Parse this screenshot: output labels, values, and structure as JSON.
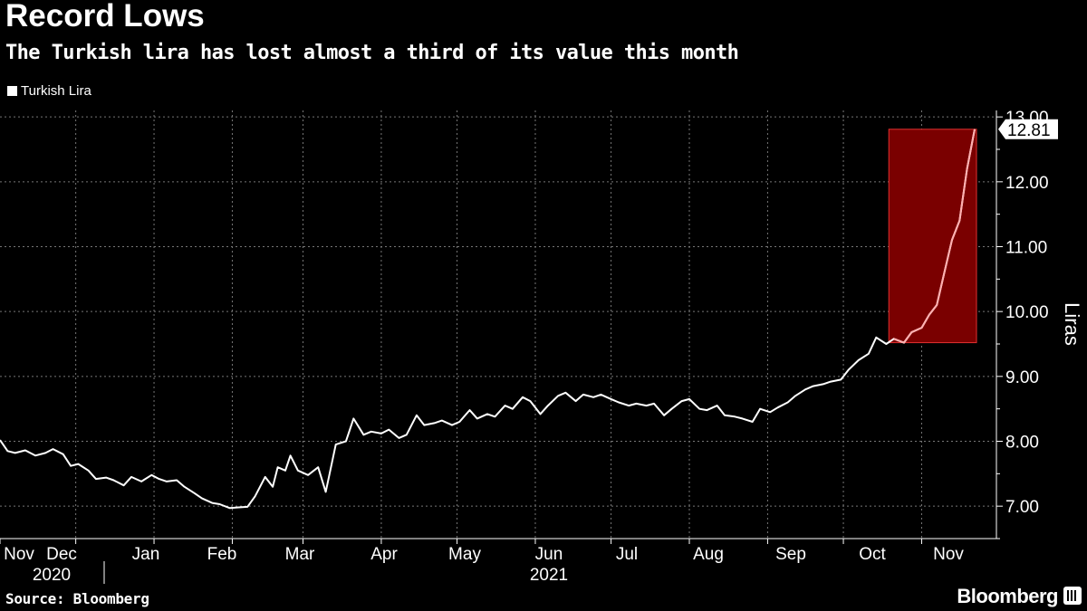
{
  "chart_data": {
    "type": "line",
    "title": "Record Lows",
    "subtitle": "The Turkish lira has lost almost a third of its value this month",
    "legend": [
      "Turkish Lira"
    ],
    "ylabel": "Liras",
    "ylim": [
      6.5,
      13.1
    ],
    "y_ticks": [
      "7.00",
      "8.00",
      "9.00",
      "10.00",
      "11.00",
      "12.00",
      "13.00"
    ],
    "y_tick_values": [
      7,
      8,
      9,
      10,
      11,
      12,
      13
    ],
    "x_month_labels": [
      "Nov",
      "Dec",
      "Jan",
      "Feb",
      "Mar",
      "Apr",
      "May",
      "Jun",
      "Jul",
      "Aug",
      "Sep",
      "Oct",
      "Nov"
    ],
    "x_year_labels": [
      "2020",
      "2021"
    ],
    "xlim_days": [
      0,
      386
    ],
    "series": [
      {
        "name": "Turkish Lira",
        "color": "#ffffff",
        "x_days": [
          0,
          3,
          6,
          10,
          14,
          18,
          21,
          25,
          28,
          31,
          35,
          38,
          42,
          45,
          49,
          52,
          56,
          60,
          63,
          66,
          70,
          73,
          77,
          80,
          84,
          87,
          91,
          94,
          98,
          101,
          105,
          108,
          110,
          113,
          115,
          118,
          122,
          126,
          129,
          133,
          137,
          140,
          144,
          147,
          151,
          154,
          158,
          161,
          165,
          168,
          172,
          175,
          179,
          182,
          186,
          189,
          193,
          196,
          200,
          203,
          207,
          210,
          214,
          217,
          221,
          224,
          228,
          231,
          235,
          238,
          242,
          245,
          249,
          252,
          256,
          259,
          263,
          266,
          270,
          273,
          277,
          280,
          284,
          287,
          291,
          294,
          298,
          301,
          305,
          308,
          312,
          315,
          319,
          322,
          326,
          329,
          333,
          336,
          340,
          344,
          347,
          351,
          354,
          358,
          361,
          365,
          368,
          371,
          374,
          377,
          380,
          383,
          386
        ],
        "values": [
          8.02,
          7.85,
          7.82,
          7.86,
          7.78,
          7.82,
          7.88,
          7.8,
          7.62,
          7.65,
          7.55,
          7.42,
          7.44,
          7.4,
          7.32,
          7.45,
          7.38,
          7.48,
          7.42,
          7.38,
          7.4,
          7.3,
          7.2,
          7.12,
          7.05,
          7.03,
          6.97,
          6.98,
          6.99,
          7.15,
          7.45,
          7.3,
          7.6,
          7.55,
          7.78,
          7.55,
          7.48,
          7.6,
          7.22,
          7.95,
          8.0,
          8.35,
          8.1,
          8.15,
          8.12,
          8.18,
          8.05,
          8.1,
          8.4,
          8.25,
          8.28,
          8.32,
          8.25,
          8.3,
          8.48,
          8.35,
          8.42,
          8.38,
          8.55,
          8.5,
          8.68,
          8.62,
          8.42,
          8.55,
          8.7,
          8.75,
          8.62,
          8.72,
          8.68,
          8.72,
          8.65,
          8.6,
          8.55,
          8.58,
          8.55,
          8.58,
          8.4,
          8.5,
          8.62,
          8.65,
          8.5,
          8.48,
          8.55,
          8.4,
          8.38,
          8.35,
          8.3,
          8.5,
          8.45,
          8.52,
          8.6,
          8.7,
          8.8,
          8.85,
          8.88,
          8.92,
          8.95,
          9.1,
          9.25,
          9.35,
          9.6,
          9.5,
          9.58,
          9.52,
          9.68,
          9.75,
          9.95,
          10.1,
          10.6,
          11.1,
          11.4,
          12.2,
          12.81
        ]
      }
    ],
    "highlight": {
      "x_days_range": [
        352,
        386
      ],
      "y_range": [
        9.52,
        12.81
      ],
      "color": "#7a0000"
    },
    "last_value_label": "12.81"
  },
  "footer": {
    "source": "Source: Bloomberg",
    "brand": "Bloomberg"
  }
}
